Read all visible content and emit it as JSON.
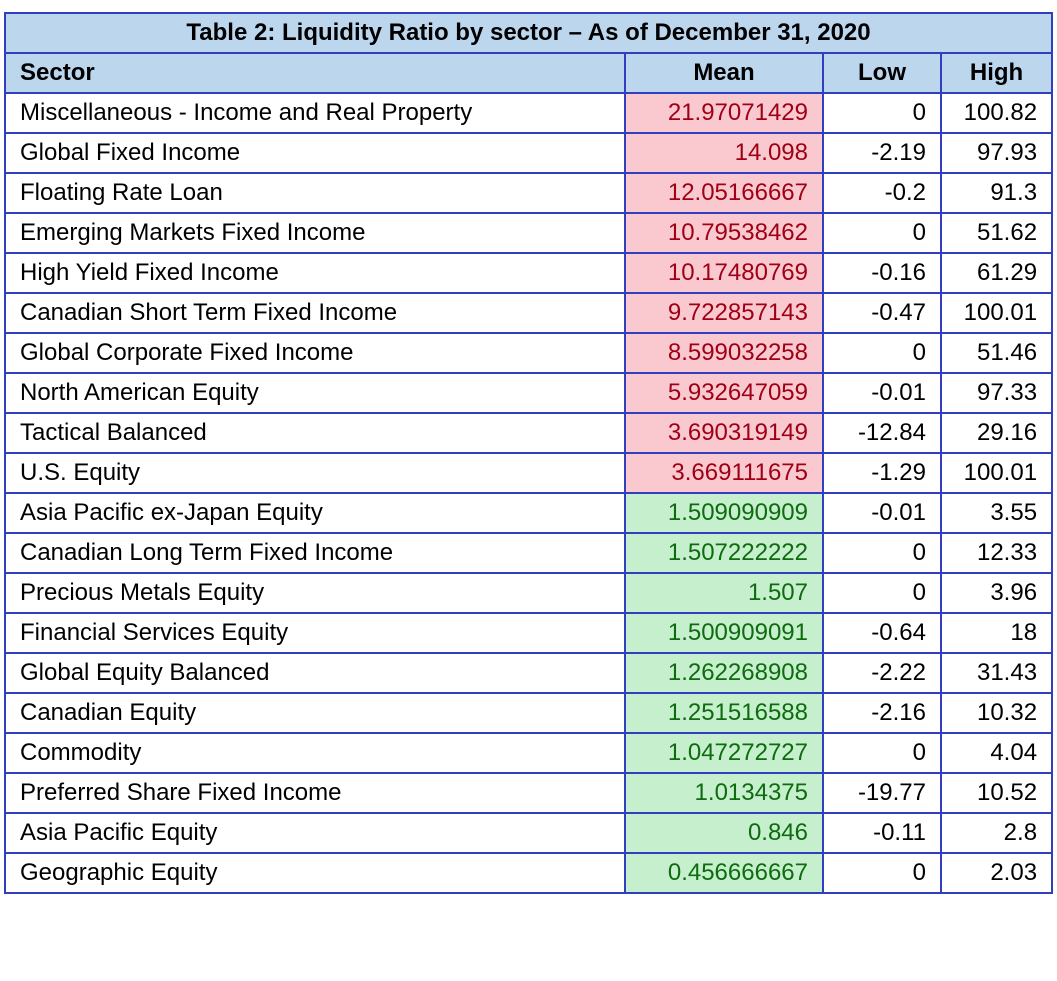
{
  "table": {
    "title": "Table 2: Liquidity Ratio by sector – As of December 31, 2020",
    "columns": [
      "Sector",
      "Mean",
      "Low",
      "High"
    ],
    "highlight_colors": {
      "red_fill": "#f9c9cf",
      "red_text": "#a00016",
      "green_fill": "#c6efce",
      "green_text": "#0e6b0e",
      "header_fill": "#bcd6ee",
      "border": "#2f3fbf"
    },
    "rows": [
      {
        "sector": "Miscellaneous - Income and Real Property",
        "mean": "21.97071429",
        "low": "0",
        "high": "100.82",
        "tone": "red"
      },
      {
        "sector": "Global Fixed Income",
        "mean": "14.098",
        "low": "-2.19",
        "high": "97.93",
        "tone": "red"
      },
      {
        "sector": "Floating Rate Loan",
        "mean": "12.05166667",
        "low": "-0.2",
        "high": "91.3",
        "tone": "red"
      },
      {
        "sector": "Emerging Markets Fixed Income",
        "mean": "10.79538462",
        "low": "0",
        "high": "51.62",
        "tone": "red"
      },
      {
        "sector": "High Yield Fixed Income",
        "mean": "10.17480769",
        "low": "-0.16",
        "high": "61.29",
        "tone": "red"
      },
      {
        "sector": "Canadian Short Term Fixed Income",
        "mean": "9.722857143",
        "low": "-0.47",
        "high": "100.01",
        "tone": "red"
      },
      {
        "sector": "Global Corporate Fixed Income",
        "mean": "8.599032258",
        "low": "0",
        "high": "51.46",
        "tone": "red"
      },
      {
        "sector": "North American Equity",
        "mean": "5.932647059",
        "low": "-0.01",
        "high": "97.33",
        "tone": "red"
      },
      {
        "sector": "Tactical Balanced",
        "mean": "3.690319149",
        "low": "-12.84",
        "high": "29.16",
        "tone": "red"
      },
      {
        "sector": "U.S. Equity",
        "mean": "3.669111675",
        "low": "-1.29",
        "high": "100.01",
        "tone": "red"
      },
      {
        "sector": "Asia Pacific ex-Japan Equity",
        "mean": "1.509090909",
        "low": "-0.01",
        "high": "3.55",
        "tone": "green"
      },
      {
        "sector": "Canadian Long Term Fixed Income",
        "mean": "1.507222222",
        "low": "0",
        "high": "12.33",
        "tone": "green"
      },
      {
        "sector": "Precious Metals Equity",
        "mean": "1.507",
        "low": "0",
        "high": "3.96",
        "tone": "green"
      },
      {
        "sector": "Financial Services Equity",
        "mean": "1.500909091",
        "low": "-0.64",
        "high": "18",
        "tone": "green"
      },
      {
        "sector": "Global Equity Balanced",
        "mean": "1.262268908",
        "low": "-2.22",
        "high": "31.43",
        "tone": "green"
      },
      {
        "sector": "Canadian Equity",
        "mean": "1.251516588",
        "low": "-2.16",
        "high": "10.32",
        "tone": "green"
      },
      {
        "sector": "Commodity",
        "mean": "1.047272727",
        "low": "0",
        "high": "4.04",
        "tone": "green"
      },
      {
        "sector": "Preferred Share Fixed Income",
        "mean": "1.0134375",
        "low": "-19.77",
        "high": "10.52",
        "tone": "green"
      },
      {
        "sector": "Asia Pacific Equity",
        "mean": "0.846",
        "low": "-0.11",
        "high": "2.8",
        "tone": "green"
      },
      {
        "sector": "Geographic Equity",
        "mean": "0.456666667",
        "low": "0",
        "high": "2.03",
        "tone": "green"
      }
    ]
  }
}
